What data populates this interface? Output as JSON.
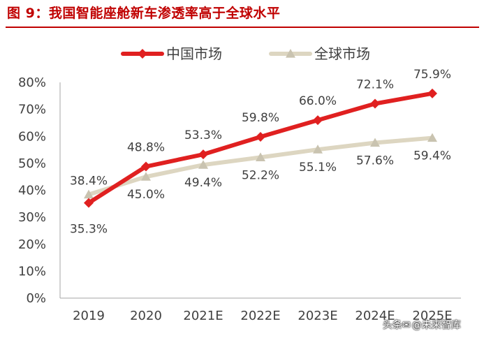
{
  "title": "图 9：我国智能座舱新车渗透率高于全球水平",
  "watermark": {
    "prefix": "头条",
    "handle": "@未来智库",
    "icon": "wechat-icon"
  },
  "chart_data": {
    "type": "line",
    "categories": [
      "2019",
      "2020",
      "2021E",
      "2022E",
      "2023E",
      "2024E",
      "2025E"
    ],
    "ylim": [
      0,
      80
    ],
    "yticks": [
      "0%",
      "10%",
      "20%",
      "30%",
      "40%",
      "50%",
      "60%",
      "70%",
      "80%"
    ],
    "legend_position": "top-center",
    "grid": false,
    "series": [
      {
        "name": "中国市场",
        "values": [
          35.3,
          48.8,
          53.3,
          59.8,
          66.0,
          72.1,
          75.9
        ],
        "labels": [
          "35.3%",
          "48.8%",
          "53.3%",
          "59.8%",
          "66.0%",
          "72.1%",
          "75.9%"
        ],
        "color": "#e02020",
        "marker": "diamond"
      },
      {
        "name": "全球市场",
        "values": [
          38.4,
          45.0,
          49.4,
          52.2,
          55.1,
          57.6,
          59.4
        ],
        "labels": [
          "38.4%",
          "45.0%",
          "49.4%",
          "52.2%",
          "55.1%",
          "57.6%",
          "59.4%"
        ],
        "color": "#ddd6c1",
        "marker": "triangle"
      }
    ]
  }
}
